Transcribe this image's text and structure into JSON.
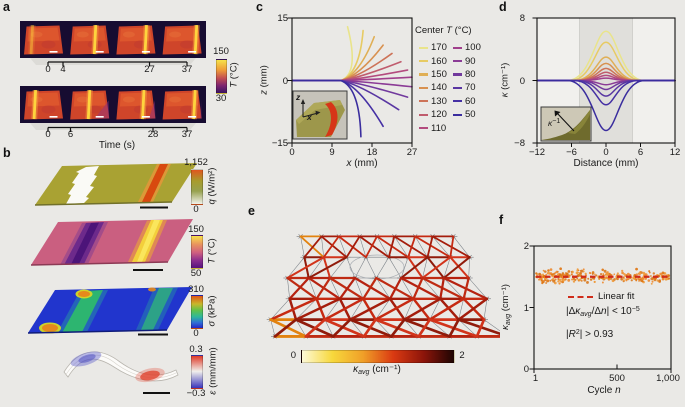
{
  "figure": {
    "bg": "#eae9e6"
  },
  "panels": {
    "a": {
      "label": "a",
      "colorbar": {
        "max": "150",
        "min": "30",
        "label_var": "T",
        "label_unit": " (°C)"
      },
      "row1_ticks": [
        "0",
        "4",
        "27",
        "37"
      ],
      "row2_ticks": [
        "0",
        "6",
        "28",
        "37"
      ],
      "axis_label": "Time (s)"
    },
    "b": {
      "label": "b",
      "colorbars": [
        {
          "max": "1,152",
          "min": "0",
          "label_var": "q",
          "label_unit": " (W/m²)"
        },
        {
          "max": "150",
          "min": "50",
          "label_var": "T",
          "label_unit": " (°C)"
        },
        {
          "max": "310",
          "min": "0",
          "label_var": "σ",
          "label_unit": " (kPa)"
        },
        {
          "max": "0.3",
          "min": "−0.3",
          "label_var": "ε",
          "label_unit": " (mm/mm)"
        }
      ]
    },
    "c": {
      "label": "c",
      "ylabel_var": "z",
      "ylabel_unit": " (mm)",
      "xlabel_var": "x",
      "xlabel_unit": " (mm)",
      "yticks": [
        "15",
        "0",
        "−15"
      ],
      "xticks": [
        "0",
        "9",
        "18",
        "27"
      ],
      "legend_title_pre": "Center ",
      "legend_title_var": "T",
      "legend_title_unit": " (°C)",
      "inset_axis_z": "z",
      "inset_axis_x": "x"
    },
    "d": {
      "label": "d",
      "ylabel_var": "κ",
      "ylabel_unit": " (cm⁻¹)",
      "xlabel": "Distance (mm)",
      "yticks": [
        "8",
        "0",
        "−8"
      ],
      "xticks": [
        "−12",
        "−6",
        "0",
        "6",
        "12"
      ],
      "inset_var": "κ",
      "inset_sup": "−1"
    },
    "e": {
      "label": "e",
      "colorbar": {
        "min": "0",
        "max": "2",
        "label_var": "κ",
        "label_sub": "avg",
        "label_unit": " (cm⁻¹)"
      }
    },
    "f": {
      "label": "f",
      "ylabel_var": "κ",
      "ylabel_sub": "avg",
      "ylabel_unit": " (cm⁻¹)",
      "yticks": [
        "2",
        "1",
        "0"
      ],
      "xticks": [
        "1",
        "500",
        "1,000"
      ],
      "xlabel_pre": "Cycle ",
      "xlabel_var": "n",
      "legend_fit": "Linear fit",
      "eq1": {
        "a": "|Δ",
        "b": "κ",
        "c": "avg",
        "d": "/Δ",
        "e": "n",
        "f": "| < 10",
        "g": "−5"
      },
      "eq2": {
        "a": "|",
        "b": "R",
        "c": "2",
        "d": "| > 0.93"
      }
    }
  },
  "chart_data": [
    {
      "panel": "c",
      "type": "line",
      "xlabel": "x (mm)",
      "ylabel": "z (mm)",
      "xlim": [
        0,
        27
      ],
      "ylim": [
        -15,
        15
      ],
      "legend_title": "Center T (°C)",
      "shared_start": [
        [
          0,
          0
        ],
        [
          11,
          0
        ]
      ],
      "series": [
        {
          "name": "170",
          "color": "#e9e48b",
          "tip": [
            12.5,
            12.9
          ]
        },
        {
          "name": "160",
          "color": "#e7cb63",
          "tip": [
            16.0,
            12.0
          ]
        },
        {
          "name": "150",
          "color": "#e0af55",
          "tip": [
            18.5,
            10.5
          ]
        },
        {
          "name": "140",
          "color": "#d89150",
          "tip": [
            20.5,
            8.5
          ]
        },
        {
          "name": "130",
          "color": "#cd7358",
          "tip": [
            22.5,
            6.5
          ]
        },
        {
          "name": "120",
          "color": "#c05c6d",
          "tip": [
            24.5,
            4.5
          ]
        },
        {
          "name": "110",
          "color": "#b34b7e",
          "tip": [
            26.0,
            2.5
          ]
        },
        {
          "name": "100",
          "color": "#a03f8c",
          "tip": [
            27.0,
            0.8
          ]
        },
        {
          "name": "90",
          "color": "#8b3b96",
          "tip": [
            27.0,
            -1.5
          ]
        },
        {
          "name": "80",
          "color": "#71399d",
          "tip": [
            26.0,
            -4.0
          ]
        },
        {
          "name": "70",
          "color": "#5936a2",
          "tip": [
            24.0,
            -7.0
          ]
        },
        {
          "name": "60",
          "color": "#4530a4",
          "tip": [
            20.5,
            -11.0
          ]
        },
        {
          "name": "50",
          "color": "#3a2d9e",
          "tip": [
            15.5,
            -13.5
          ]
        }
      ]
    },
    {
      "panel": "d",
      "type": "line",
      "xlabel": "Distance (mm)",
      "ylabel": "κ (cm⁻¹)",
      "xlim": [
        -12,
        12
      ],
      "ylim": [
        -8,
        8
      ],
      "shaded_band_x": [
        -4.6,
        4.6
      ],
      "series": [
        {
          "name": "170",
          "color": "#e9e48b",
          "peak": 6.3
        },
        {
          "name": "160",
          "color": "#e7cb63",
          "peak": 4.9
        },
        {
          "name": "150",
          "color": "#e0af55",
          "peak": 3.0
        },
        {
          "name": "140",
          "color": "#d89150",
          "peak": 2.2
        },
        {
          "name": "130",
          "color": "#cd7358",
          "peak": 1.55
        },
        {
          "name": "120",
          "color": "#c05c6d",
          "peak": 1.05
        },
        {
          "name": "110",
          "color": "#b34b7e",
          "peak": 0.65
        },
        {
          "name": "100",
          "color": "#a03f8c",
          "peak": 0.3
        },
        {
          "name": "90",
          "color": "#8b3b96",
          "peak": -0.55
        },
        {
          "name": "80",
          "color": "#71399d",
          "peak": -1.15
        },
        {
          "name": "70",
          "color": "#5936a2",
          "peak": -2.0
        },
        {
          "name": "60",
          "color": "#4530a4",
          "peak": -3.1
        },
        {
          "name": "50",
          "color": "#3a2d9e",
          "peak": -6.4
        }
      ]
    },
    {
      "panel": "f",
      "type": "scatter",
      "xlabel": "Cycle n",
      "ylabel": "κavg (cm⁻¹)",
      "xlim": [
        1,
        1000
      ],
      "ylim": [
        0,
        2
      ],
      "mean_kappa_avg": 1.5,
      "noise_amplitude": 0.07,
      "n_cycles": 1000,
      "fit": {
        "label": "Linear fit",
        "slope_note": "|Δκavg/Δn| < 10⁻⁵",
        "r2_note": "|R²| > 0.93",
        "value": 1.5
      },
      "point_color": "#ee8a2d",
      "fit_color": "#cf2c1a"
    },
    {
      "panel": "e",
      "type": "heatmap-colorbar",
      "label": "κavg (cm⁻¹)",
      "range": [
        0,
        2
      ]
    }
  ]
}
